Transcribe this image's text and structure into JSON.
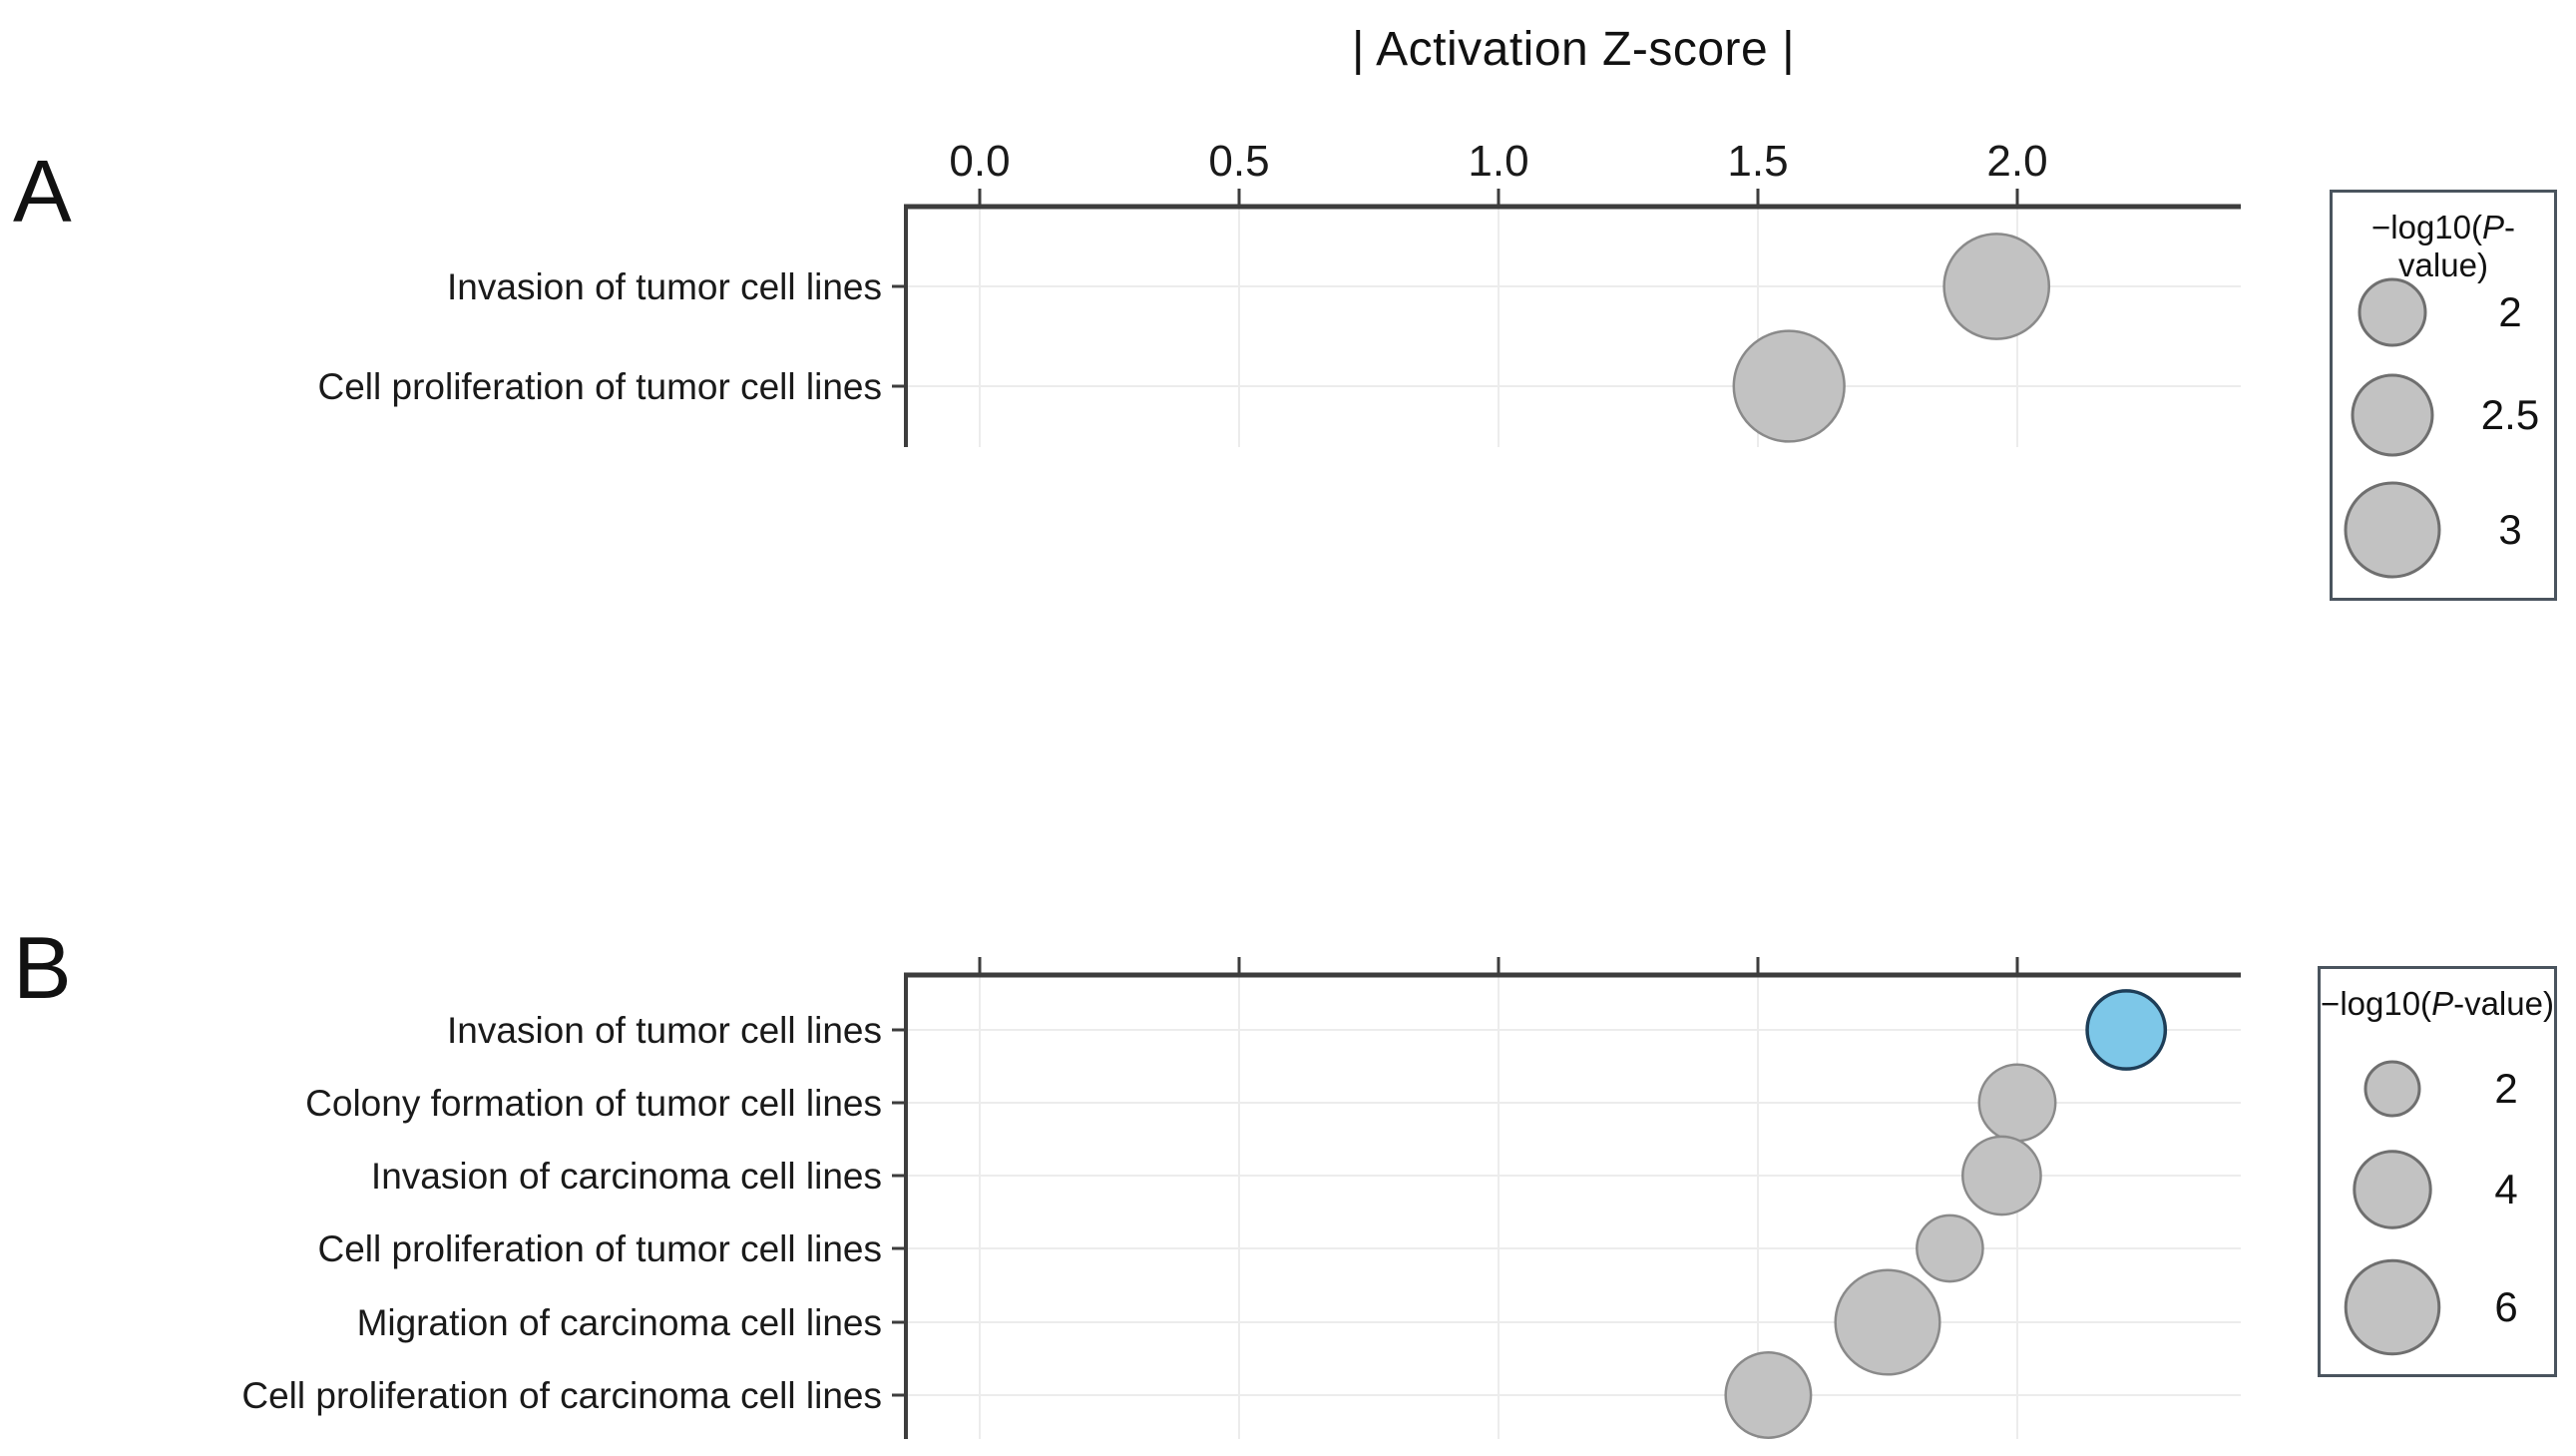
{
  "figure": {
    "title": "| Activation Z-score |",
    "panel_labels": [
      "A",
      "B"
    ],
    "colors": {
      "background": "#ffffff",
      "axis": "#3d3d3d",
      "gridline": "#ececec",
      "text": "#1a1a1a",
      "bubble_fill": "#c2c2c2",
      "bubble_stroke": "#8a8a8a",
      "highlight_fill": "#7dc7e8",
      "highlight_stroke": "#1e3e58",
      "legend_border": "#4a545e"
    }
  },
  "chart_data": [
    {
      "type": "scatter",
      "panel": "A",
      "title": "| Activation Z-score |",
      "x_axis_label": "Activation Z-score (absolute value)",
      "x_ticks": [
        "0.0",
        "0.5",
        "1.0",
        "1.5",
        "2.0"
      ],
      "x_tick_values": [
        0,
        0.5,
        1,
        1.5,
        2
      ],
      "x_tick_labels_visible": true,
      "xlim": [
        -0.14,
        2.43
      ],
      "grid": "major vertical gridlines and one horizontal gridline per category",
      "legend_position": "right",
      "size_legend": {
        "title": "−log10(P-value)",
        "title_parts": [
          "−log10(",
          "P",
          "-value)"
        ],
        "values": [
          2,
          2.5,
          3
        ],
        "labels": [
          "2",
          "2.5",
          "3"
        ]
      },
      "points": [
        {
          "category": "Invasion of tumor cell lines",
          "activation_z_score": 1.96,
          "neg_log10_p": 3.4,
          "highlighted": false
        },
        {
          "category": "Cell proliferation of tumor cell lines",
          "activation_z_score": 1.56,
          "neg_log10_p": 3.6,
          "highlighted": false
        }
      ]
    },
    {
      "type": "scatter",
      "panel": "B",
      "title": "",
      "x_axis_label": "Activation Z-score (absolute value)",
      "x_ticks": [
        "0.0",
        "0.5",
        "1.0",
        "1.5",
        "2.0"
      ],
      "x_tick_values": [
        0,
        0.5,
        1,
        1.5,
        2
      ],
      "x_tick_labels_visible": false,
      "xlim": [
        -0.14,
        2.43
      ],
      "grid": "major vertical gridlines and one horizontal gridline per category",
      "legend_position": "right",
      "size_legend": {
        "title": "−log10(P-value)",
        "title_parts": [
          "−log10(",
          "P",
          "-value)"
        ],
        "values": [
          2,
          4,
          6
        ],
        "labels": [
          "2",
          "4",
          "6"
        ]
      },
      "points": [
        {
          "category": "Invasion of tumor cell lines",
          "activation_z_score": 2.21,
          "neg_log10_p": 4.2,
          "highlighted": true
        },
        {
          "category": "Colony formation of tumor cell lines",
          "activation_z_score": 2.0,
          "neg_log10_p": 4.0,
          "highlighted": false
        },
        {
          "category": "Invasion of carcinoma cell lines",
          "activation_z_score": 1.97,
          "neg_log10_p": 4.2,
          "highlighted": false
        },
        {
          "category": "Cell proliferation of tumor cell lines",
          "activation_z_score": 1.87,
          "neg_log10_p": 3.0,
          "highlighted": false
        },
        {
          "category": "Migration of carcinoma cell lines",
          "activation_z_score": 1.75,
          "neg_log10_p": 7.5,
          "highlighted": false
        },
        {
          "category": "Cell proliferation of carcinoma cell lines",
          "activation_z_score": 1.52,
          "neg_log10_p": 5.0,
          "highlighted": false
        }
      ]
    }
  ]
}
